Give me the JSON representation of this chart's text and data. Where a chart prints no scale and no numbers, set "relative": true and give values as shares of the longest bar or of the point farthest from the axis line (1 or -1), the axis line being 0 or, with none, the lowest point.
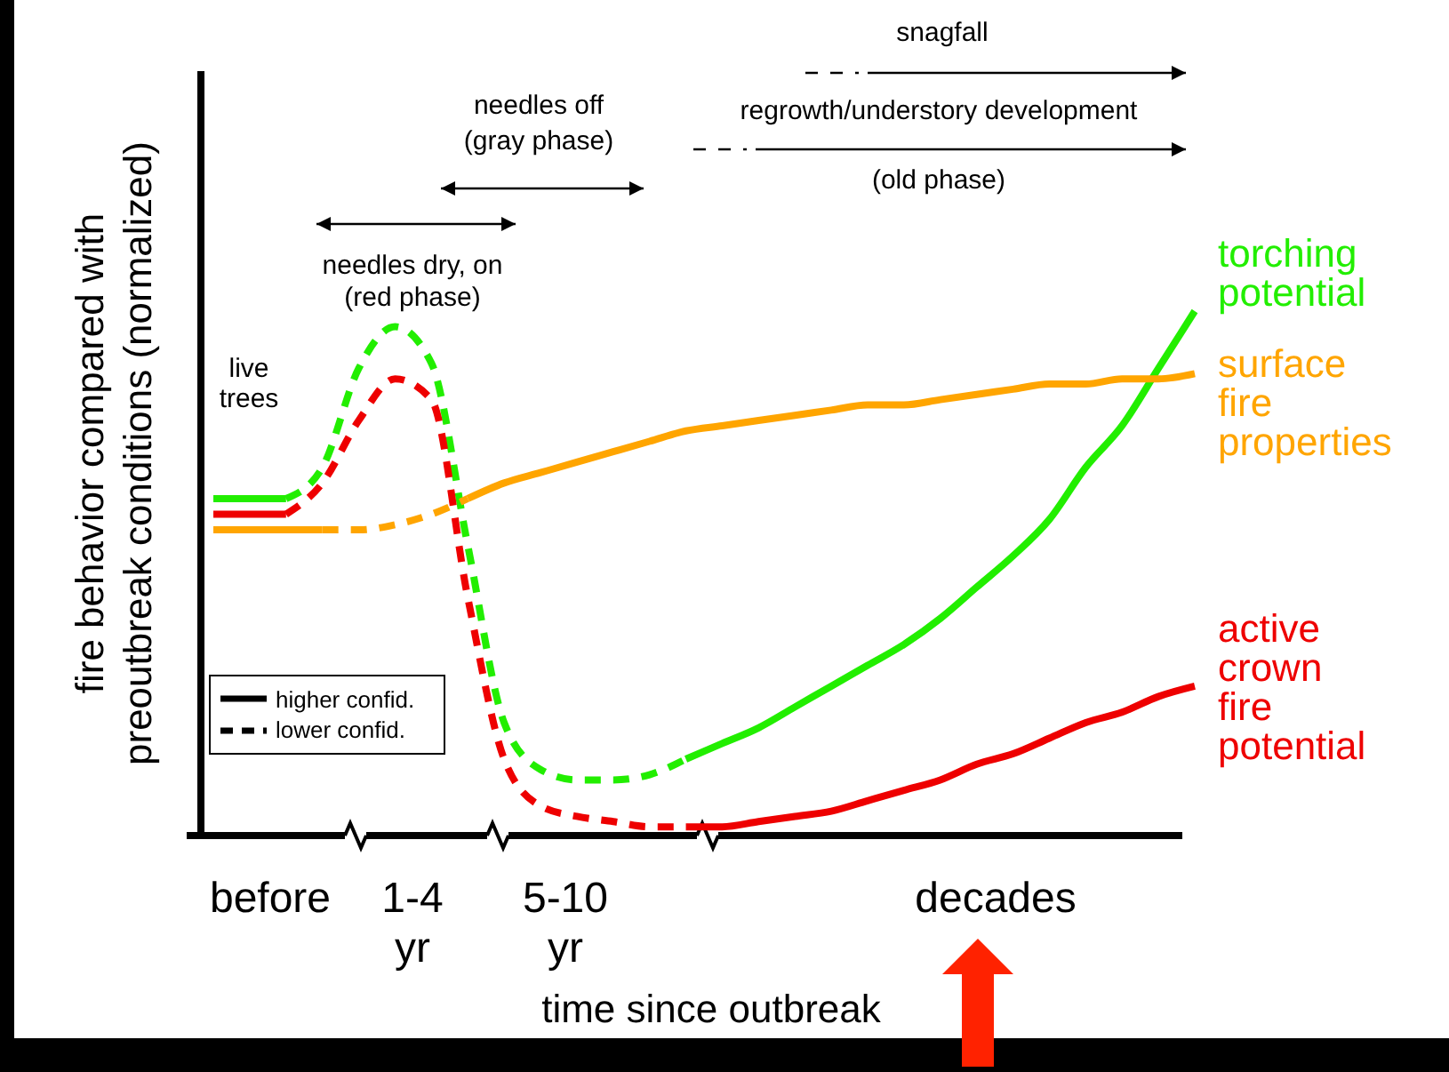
{
  "chart_data": {
    "type": "line",
    "relative": true,
    "xlabel": "time since outbreak",
    "ylabel": "fire behavior compared with\npreoutbreak conditions (normalized)",
    "categories": [
      null,
      null,
      null,
      null,
      null,
      null,
      null,
      null,
      null,
      null,
      null,
      null,
      null,
      null,
      null,
      null,
      null,
      null,
      null,
      null,
      null,
      null,
      null,
      null,
      null,
      null,
      null,
      null
    ],
    "series": [
      {
        "color": "#22ee00",
        "line_style": "solid",
        "values": [
          0.64,
          0.64,
          0.64,
          null,
          null,
          null,
          null,
          null,
          null,
          null,
          null,
          null,
          null,
          null,
          null,
          null,
          null,
          null,
          null,
          null,
          null,
          null,
          null,
          null,
          null,
          null,
          null,
          null
        ]
      },
      {
        "color": "#22ee00",
        "line_style": "dashed",
        "values": [
          null,
          null,
          0.64,
          0.7,
          0.89,
          0.97,
          0.9,
          0.55,
          0.21,
          0.12,
          0.1,
          0.1,
          0.11,
          0.14,
          null,
          null,
          null,
          null,
          null,
          null,
          null,
          null,
          null,
          null,
          null,
          null,
          null,
          null
        ]
      },
      {
        "name": "torching potential",
        "color": "#22ee00",
        "line_style": "solid",
        "values": [
          null,
          null,
          null,
          null,
          null,
          null,
          null,
          null,
          null,
          null,
          null,
          null,
          null,
          0.14,
          0.17,
          0.2,
          0.24,
          0.28,
          0.32,
          0.36,
          0.41,
          0.47,
          0.53,
          0.6,
          0.7,
          0.78,
          0.89,
          1.0
        ]
      },
      {
        "color": "#ee0000",
        "line_style": "solid",
        "values": [
          0.61,
          0.61,
          0.61,
          null,
          null,
          null,
          null,
          null,
          null,
          null,
          null,
          null,
          null,
          null,
          null,
          null,
          null,
          null,
          null,
          null,
          null,
          null,
          null,
          null,
          null,
          null,
          null,
          null
        ]
      },
      {
        "color": "#ee0000",
        "line_style": "dashed",
        "values": [
          null,
          null,
          0.61,
          0.67,
          0.79,
          0.87,
          0.83,
          0.45,
          0.14,
          0.05,
          0.03,
          0.02,
          0.01,
          0.01,
          null,
          null,
          null,
          null,
          null,
          null,
          null,
          null,
          null,
          null,
          null,
          null,
          null,
          null
        ]
      },
      {
        "name": "active crown fire potential",
        "color": "#ee0000",
        "line_style": "solid",
        "values": [
          null,
          null,
          null,
          null,
          null,
          null,
          null,
          null,
          null,
          null,
          null,
          null,
          null,
          0.01,
          0.01,
          0.02,
          0.03,
          0.04,
          0.06,
          0.08,
          0.1,
          0.13,
          0.15,
          0.18,
          0.21,
          0.23,
          0.26,
          0.28
        ]
      },
      {
        "color": "#ffa500",
        "line_style": "solid",
        "values": [
          0.58,
          0.58,
          0.58,
          0.58,
          null,
          null,
          null,
          null,
          null,
          null,
          null,
          null,
          null,
          null,
          null,
          null,
          null,
          null,
          null,
          null,
          null,
          null,
          null,
          null,
          null,
          null,
          null,
          null
        ]
      },
      {
        "color": "#ffa500",
        "line_style": "dashed",
        "values": [
          null,
          null,
          null,
          0.58,
          0.58,
          0.59,
          0.61,
          0.64,
          null,
          null,
          null,
          null,
          null,
          null,
          null,
          null,
          null,
          null,
          null,
          null,
          null,
          null,
          null,
          null,
          null,
          null,
          null,
          null
        ]
      },
      {
        "name": "surface fire properties",
        "color": "#ffa500",
        "line_style": "solid",
        "values": [
          null,
          null,
          null,
          null,
          null,
          null,
          null,
          0.64,
          0.67,
          0.69,
          0.71,
          0.73,
          0.75,
          0.77,
          0.78,
          0.79,
          0.8,
          0.81,
          0.82,
          0.82,
          0.83,
          0.84,
          0.85,
          0.86,
          0.86,
          0.87,
          0.87,
          0.88
        ]
      }
    ],
    "annotations": [
      "live\ntrees",
      "needles dry, on\n(red phase)",
      "needles off\n(gray phase)",
      "snagfall",
      "regrowth/understory development",
      "(old phase)",
      "higher confid.",
      "lower confid.",
      "before",
      "1-4\nyr",
      "5-10\nyr",
      "decades"
    ]
  }
}
